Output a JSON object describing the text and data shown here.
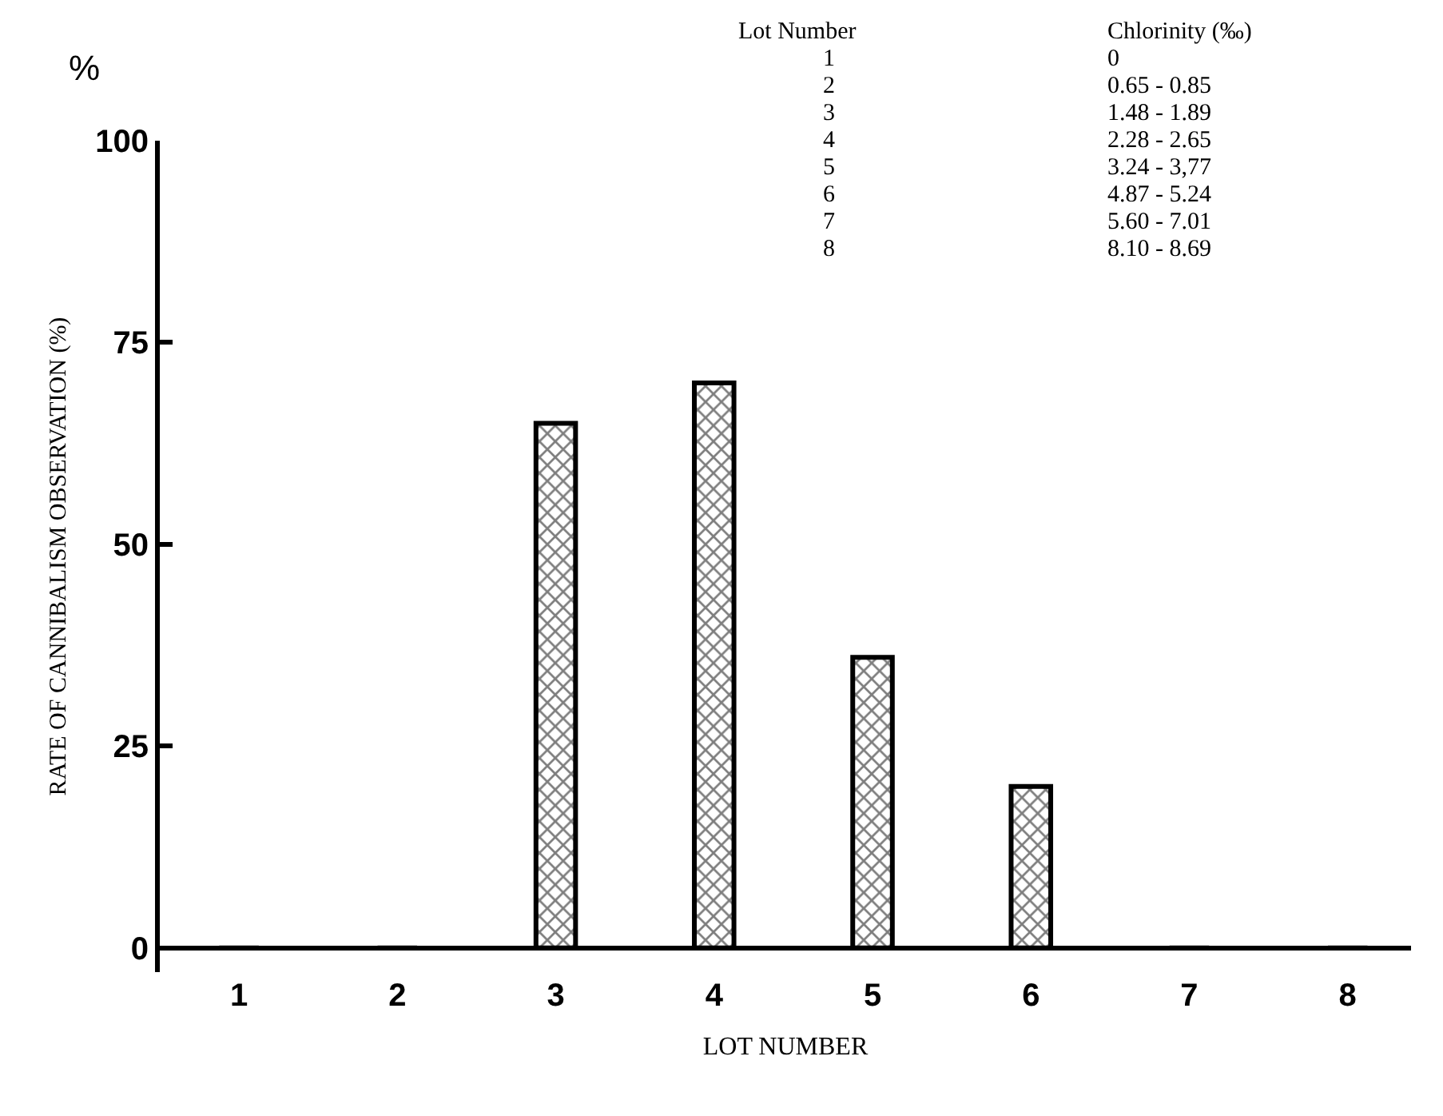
{
  "chart_data": {
    "type": "bar",
    "categories": [
      "1",
      "2",
      "3",
      "4",
      "5",
      "6",
      "7",
      "8"
    ],
    "values": [
      0,
      0,
      65,
      70,
      36,
      20,
      0,
      0
    ],
    "color": "#000000",
    "xlabel": "LOT NUMBER",
    "ylabel": "RATE OF CANNIBALISM OBSERVATION (%)",
    "ylim": [
      -3,
      100
    ],
    "yticks": [
      0,
      25,
      50,
      75,
      100
    ],
    "annotations": [
      "%",
      "Lot Number",
      "Chlorinity (‰)",
      "1",
      "0",
      "2",
      "0.65 - 0.85",
      "3",
      "1.48 - 1.89",
      "4",
      "2.28 - 2.65",
      "5",
      "3.24 - 3,77",
      "6",
      "4.87 - 5.24",
      "7",
      "5.60 - 7.01",
      "8",
      "8.10 - 8.69"
    ]
  }
}
